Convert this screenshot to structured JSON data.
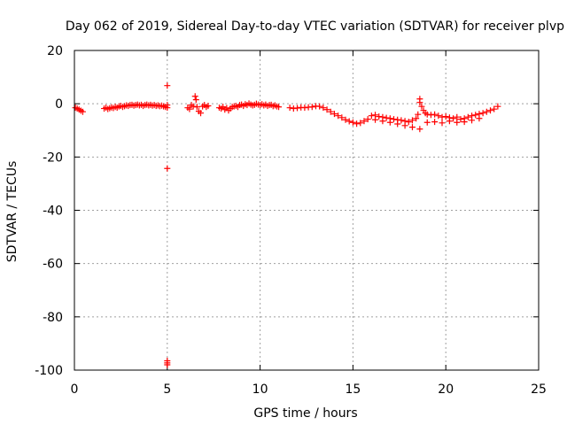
{
  "chart_data": {
    "type": "scatter",
    "title": "Day 062 of 2019, Sidereal Day-to-day VTEC variation (SDTVAR) for receiver plvp",
    "xlabel": "GPS time / hours",
    "ylabel": "SDTVAR / TECUs",
    "xlim": [
      0,
      25
    ],
    "ylim": [
      -100,
      20
    ],
    "xticks": [
      0,
      5,
      10,
      15,
      20,
      25
    ],
    "yticks": [
      20,
      0,
      -20,
      -40,
      -60,
      -80,
      -100
    ],
    "grid": true,
    "marker": "+",
    "series": [
      {
        "name": "SDTVAR",
        "color": "#ff0000",
        "x": [
          0.05,
          0.15,
          0.25,
          0.35,
          0.45,
          1.6,
          1.7,
          1.8,
          1.9,
          2.0,
          2.1,
          2.2,
          2.3,
          2.4,
          2.5,
          2.6,
          2.7,
          2.8,
          2.9,
          3.0,
          3.1,
          3.2,
          3.3,
          3.4,
          3.5,
          3.6,
          3.7,
          3.8,
          3.9,
          4.0,
          4.1,
          4.2,
          4.3,
          4.4,
          4.5,
          4.6,
          4.7,
          4.8,
          4.9,
          5.0,
          5.0,
          5.0,
          5.0,
          5.0,
          5.0,
          5.0,
          6.1,
          6.2,
          6.3,
          6.4,
          6.5,
          6.55,
          6.6,
          6.7,
          6.8,
          6.9,
          7.0,
          7.1,
          7.2,
          7.8,
          7.9,
          8.0,
          8.1,
          8.2,
          8.3,
          8.4,
          8.5,
          8.6,
          8.7,
          8.8,
          8.9,
          9.0,
          9.1,
          9.2,
          9.3,
          9.4,
          9.5,
          9.6,
          9.7,
          9.8,
          9.9,
          10.0,
          10.1,
          10.2,
          10.3,
          10.4,
          10.5,
          10.6,
          10.7,
          10.8,
          10.9,
          11.0,
          11.6,
          11.8,
          12.0,
          12.2,
          12.4,
          12.6,
          12.8,
          13.0,
          13.2,
          13.4,
          13.6,
          13.8,
          14.0,
          14.2,
          14.4,
          14.6,
          14.8,
          15.0,
          15.2,
          15.4,
          15.6,
          15.8,
          16.0,
          16.2,
          16.4,
          16.6,
          16.8,
          17.0,
          17.2,
          17.4,
          17.6,
          17.8,
          18.0,
          18.2,
          18.4,
          18.5,
          18.6,
          18.6,
          18.7,
          18.8,
          18.9,
          19.0,
          19.2,
          19.4,
          19.6,
          19.8,
          20.0,
          20.2,
          20.4,
          20.6,
          20.8,
          21.0,
          21.2,
          21.4,
          21.6,
          21.8,
          22.0,
          22.2,
          22.4,
          22.6,
          22.8,
          16.2,
          16.6,
          17.0,
          17.4,
          17.8,
          18.2,
          18.6,
          19.0,
          19.4,
          19.8,
          20.2,
          20.6,
          21.0,
          21.4,
          21.8
        ],
        "y": [
          -1.5,
          -1.8,
          -2.2,
          -2.6,
          -3.0,
          -1.8,
          -1.5,
          -2.0,
          -1.7,
          -1.4,
          -1.6,
          -1.2,
          -1.5,
          -1.0,
          -0.8,
          -1.2,
          -0.9,
          -0.6,
          -0.8,
          -0.5,
          -0.4,
          -0.7,
          -0.5,
          -0.3,
          -0.6,
          -0.4,
          -0.8,
          -0.5,
          -0.3,
          -0.6,
          -0.4,
          -0.7,
          -0.5,
          -0.8,
          -0.6,
          -0.9,
          -0.7,
          -1.0,
          -1.2,
          6.8,
          -0.5,
          -1.5,
          -24.3,
          -96.5,
          -97.3,
          -98.0,
          -1.5,
          -2.0,
          -0.5,
          -1.0,
          2.8,
          1.5,
          -1.2,
          -2.8,
          -3.5,
          -1.0,
          -0.5,
          -1.2,
          -0.8,
          -1.5,
          -1.8,
          -1.2,
          -2.2,
          -1.6,
          -2.5,
          -1.8,
          -1.2,
          -1.0,
          -0.8,
          -1.2,
          -0.5,
          -0.3,
          -0.8,
          -0.2,
          -0.5,
          0.1,
          -0.3,
          -0.6,
          -0.4,
          0.0,
          -0.3,
          -0.5,
          -0.2,
          -0.6,
          -0.3,
          -0.8,
          -0.5,
          -0.4,
          -0.9,
          -0.6,
          -1.0,
          -1.2,
          -1.5,
          -1.8,
          -1.6,
          -1.4,
          -1.5,
          -1.3,
          -1.2,
          -0.9,
          -1.0,
          -1.5,
          -2.2,
          -3.0,
          -3.8,
          -4.5,
          -5.2,
          -6.0,
          -6.6,
          -7.0,
          -7.5,
          -7.2,
          -6.5,
          -5.8,
          -4.5,
          -4.2,
          -4.8,
          -5.0,
          -5.3,
          -5.5,
          -5.8,
          -6.0,
          -6.2,
          -6.5,
          -6.8,
          -6.2,
          -5.5,
          -4.0,
          1.8,
          0.5,
          -1.0,
          -2.5,
          -3.5,
          -4.0,
          -4.2,
          -4.0,
          -4.5,
          -5.0,
          -4.8,
          -5.2,
          -5.5,
          -5.0,
          -5.8,
          -5.5,
          -5.0,
          -4.5,
          -4.2,
          -3.8,
          -3.5,
          -3.0,
          -2.5,
          -2.0,
          -1.0,
          -6.0,
          -6.5,
          -7.0,
          -7.6,
          -8.2,
          -8.8,
          -9.5,
          -7.0,
          -6.8,
          -7.2,
          -6.5,
          -7.0,
          -6.8,
          -6.2,
          -5.5
        ]
      }
    ]
  }
}
